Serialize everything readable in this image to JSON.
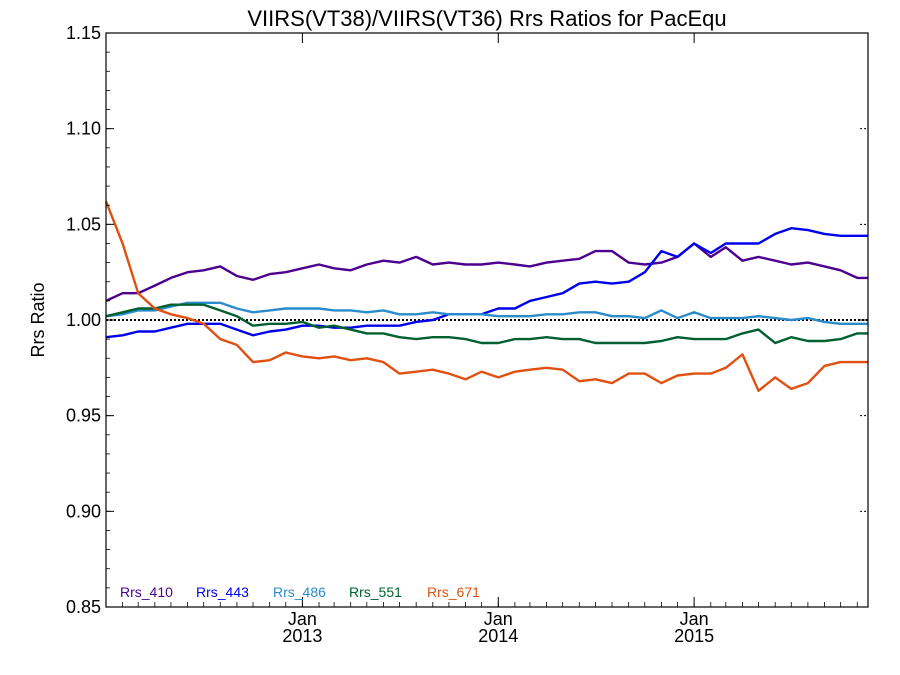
{
  "chart_data": {
    "type": "line",
    "title": "VIIRS(VT38)/VIIRS(VT36)  Rrs Ratios for PacEqu",
    "xlabel": "",
    "ylabel": "Rrs Ratio",
    "ylim": [
      0.85,
      1.15
    ],
    "xlim": [
      "2012-01-01",
      "2015-11-21"
    ],
    "yticks": [
      "0.85",
      "0.90",
      "0.95",
      "1.00",
      "1.05",
      "1.10",
      "1.15"
    ],
    "xticks": [
      {
        "date": "2013-01-01",
        "month": "Jan",
        "year": "2013"
      },
      {
        "date": "2014-01-01",
        "month": "Jan",
        "year": "2014"
      },
      {
        "date": "2015-01-01",
        "month": "Jan",
        "year": "2015"
      }
    ],
    "reference_line": 1.0,
    "grid": false,
    "legend_position": "bottom-left",
    "x": [
      "2012-01-01",
      "2012-02-01",
      "2012-03-01",
      "2012-04-01",
      "2012-05-01",
      "2012-06-01",
      "2012-07-01",
      "2012-08-01",
      "2012-09-01",
      "2012-10-01",
      "2012-11-01",
      "2012-12-01",
      "2013-01-01",
      "2013-02-01",
      "2013-03-01",
      "2013-04-01",
      "2013-05-01",
      "2013-06-01",
      "2013-07-01",
      "2013-08-01",
      "2013-09-01",
      "2013-10-01",
      "2013-11-01",
      "2013-12-01",
      "2014-01-01",
      "2014-02-01",
      "2014-03-01",
      "2014-04-01",
      "2014-05-01",
      "2014-06-01",
      "2014-07-01",
      "2014-08-01",
      "2014-09-01",
      "2014-10-01",
      "2014-11-01",
      "2014-12-01",
      "2015-01-01",
      "2015-02-01",
      "2015-03-01",
      "2015-04-01",
      "2015-05-01",
      "2015-06-01",
      "2015-07-01",
      "2015-08-01",
      "2015-09-01",
      "2015-10-01",
      "2015-11-01",
      "2015-11-21"
    ],
    "series": [
      {
        "name": "Rrs_410",
        "color": "#4b0090",
        "values": [
          1.01,
          1.014,
          1.014,
          1.018,
          1.022,
          1.025,
          1.026,
          1.028,
          1.023,
          1.021,
          1.024,
          1.025,
          1.027,
          1.029,
          1.027,
          1.026,
          1.029,
          1.031,
          1.03,
          1.033,
          1.029,
          1.03,
          1.029,
          1.029,
          1.03,
          1.029,
          1.028,
          1.03,
          1.031,
          1.032,
          1.036,
          1.036,
          1.03,
          1.029,
          1.03,
          1.033,
          1.04,
          1.033,
          1.038,
          1.031,
          1.033,
          1.031,
          1.029,
          1.03,
          1.028,
          1.026,
          1.022,
          1.022
        ]
      },
      {
        "name": "Rrs_443",
        "color": "#0000ee",
        "values": [
          0.991,
          0.992,
          0.994,
          0.994,
          0.996,
          0.998,
          0.998,
          0.998,
          0.995,
          0.992,
          0.994,
          0.995,
          0.997,
          0.997,
          0.996,
          0.996,
          0.997,
          0.997,
          0.997,
          0.999,
          1.0,
          1.003,
          1.003,
          1.003,
          1.006,
          1.006,
          1.01,
          1.012,
          1.014,
          1.019,
          1.02,
          1.019,
          1.02,
          1.025,
          1.036,
          1.033,
          1.04,
          1.035,
          1.04,
          1.04,
          1.04,
          1.045,
          1.048,
          1.047,
          1.045,
          1.044,
          1.044,
          1.044
        ]
      },
      {
        "name": "Rrs_486",
        "color": "#2b8ccc",
        "values": [
          1.002,
          1.003,
          1.005,
          1.005,
          1.007,
          1.009,
          1.009,
          1.009,
          1.006,
          1.004,
          1.005,
          1.006,
          1.006,
          1.006,
          1.005,
          1.005,
          1.004,
          1.005,
          1.003,
          1.003,
          1.004,
          1.003,
          1.003,
          1.003,
          1.002,
          1.002,
          1.002,
          1.003,
          1.003,
          1.004,
          1.004,
          1.002,
          1.002,
          1.001,
          1.005,
          1.001,
          1.004,
          1.001,
          1.001,
          1.001,
          1.002,
          1.001,
          1.0,
          1.001,
          0.999,
          0.998,
          0.998,
          0.998
        ]
      },
      {
        "name": "Rrs_551",
        "color": "#006030",
        "values": [
          1.002,
          1.004,
          1.006,
          1.006,
          1.008,
          1.008,
          1.008,
          1.005,
          1.002,
          0.997,
          0.998,
          0.998,
          0.999,
          0.996,
          0.997,
          0.995,
          0.993,
          0.993,
          0.991,
          0.99,
          0.991,
          0.991,
          0.99,
          0.988,
          0.988,
          0.99,
          0.99,
          0.991,
          0.99,
          0.99,
          0.988,
          0.988,
          0.988,
          0.988,
          0.989,
          0.991,
          0.99,
          0.99,
          0.99,
          0.993,
          0.995,
          0.988,
          0.991,
          0.989,
          0.989,
          0.99,
          0.993,
          0.993
        ]
      },
      {
        "name": "Rrs_671",
        "color": "#e05010",
        "values": [
          1.062,
          1.04,
          1.014,
          1.006,
          1.003,
          1.001,
          0.998,
          0.99,
          0.987,
          0.978,
          0.979,
          0.983,
          0.981,
          0.98,
          0.981,
          0.979,
          0.98,
          0.978,
          0.972,
          0.973,
          0.974,
          0.972,
          0.969,
          0.973,
          0.97,
          0.973,
          0.974,
          0.975,
          0.974,
          0.968,
          0.969,
          0.967,
          0.972,
          0.972,
          0.967,
          0.971,
          0.972,
          0.972,
          0.975,
          0.982,
          0.963,
          0.97,
          0.964,
          0.967,
          0.976,
          0.978,
          0.978,
          0.978
        ]
      }
    ]
  }
}
